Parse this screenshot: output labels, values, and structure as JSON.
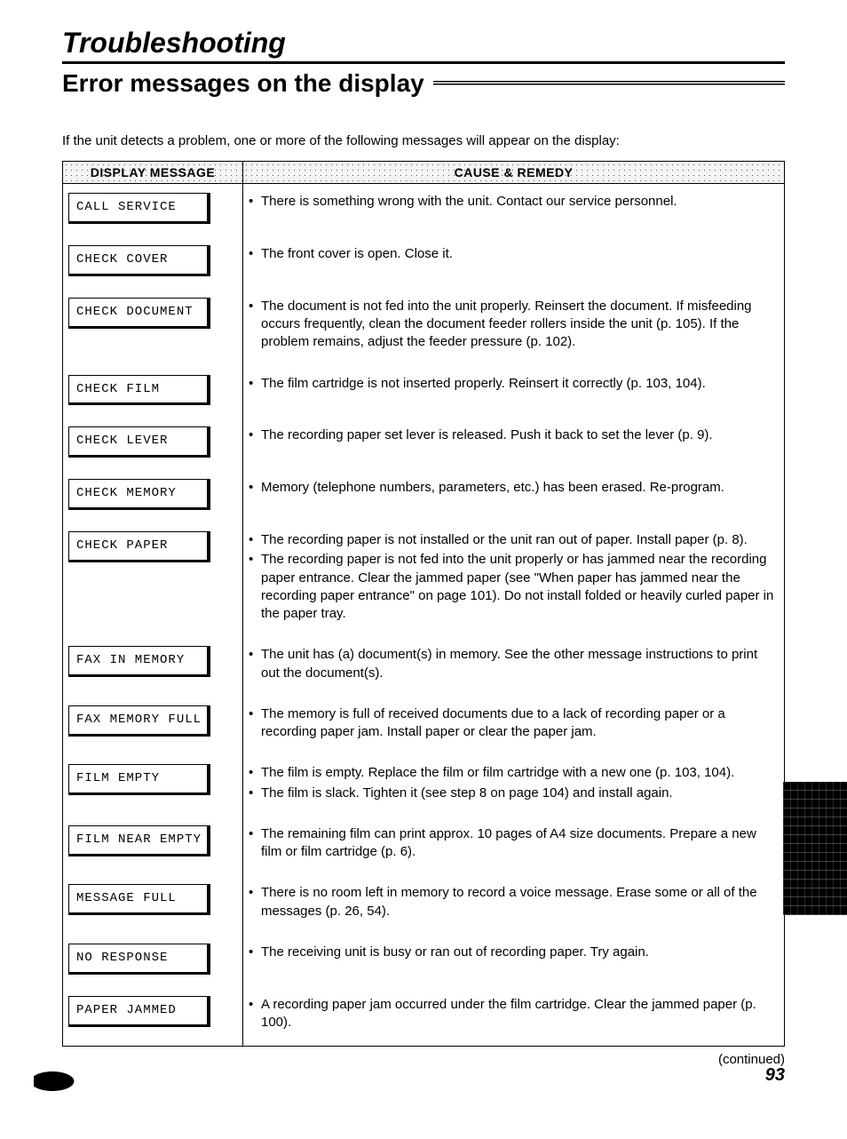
{
  "section_title": "Troubleshooting",
  "page_title": "Error messages on the display",
  "intro": "If the unit detects a problem, one or more of the following messages will appear on the display:",
  "columns": {
    "msg": "DISPLAY MESSAGE",
    "remedy": "CAUSE & REMEDY"
  },
  "rows": [
    {
      "msg": "CALL SERVICE",
      "remedy": [
        "There is something wrong with the unit. Contact our service personnel."
      ]
    },
    {
      "msg": "CHECK COVER",
      "remedy": [
        "The front cover is open. Close it."
      ]
    },
    {
      "msg": "CHECK DOCUMENT",
      "remedy": [
        "The document is not fed into the unit properly. Reinsert the document. If misfeeding occurs frequently, clean the document feeder rollers inside the unit (p. 105). If the problem remains, adjust the feeder pressure (p. 102)."
      ]
    },
    {
      "msg": "CHECK FILM",
      "remedy": [
        "The film cartridge is not inserted properly. Reinsert it correctly (p. 103, 104)."
      ]
    },
    {
      "msg": "CHECK LEVER",
      "remedy": [
        "The recording paper set lever is released. Push it back to set the lever (p. 9)."
      ]
    },
    {
      "msg": "CHECK MEMORY",
      "remedy": [
        "Memory (telephone numbers, parameters, etc.) has been erased. Re-program."
      ]
    },
    {
      "msg": "CHECK PAPER",
      "remedy": [
        "The recording paper is not installed or the unit ran out of paper. Install paper (p. 8).",
        "The recording paper is not fed into the unit properly or has jammed near the recording paper entrance. Clear the jammed paper (see \"When paper has jammed near the recording paper entrance\" on page 101). Do not install folded or heavily curled paper in the paper tray."
      ]
    },
    {
      "msg": "FAX IN MEMORY",
      "remedy": [
        "The unit has (a) document(s) in memory. See the other message instructions to print out the document(s)."
      ]
    },
    {
      "msg": "FAX MEMORY FULL",
      "remedy": [
        "The memory is full of received documents due to a lack of recording paper or a recording paper jam. Install paper or clear the paper jam."
      ]
    },
    {
      "msg": "FILM EMPTY",
      "remedy": [
        "The film is empty. Replace the film or film cartridge with a new one (p. 103, 104).",
        "The film is slack. Tighten it (see step 8 on page 104) and install again."
      ]
    },
    {
      "msg": "FILM NEAR EMPTY",
      "remedy": [
        "The remaining film can print approx. 10 pages of A4 size documents. Prepare a new film or film cartridge (p. 6)."
      ]
    },
    {
      "msg": "MESSAGE FULL",
      "remedy": [
        "There is no room left in memory to record a voice message. Erase some or all of the messages (p. 26, 54)."
      ]
    },
    {
      "msg": "NO RESPONSE",
      "remedy": [
        "The receiving unit is busy or ran out of recording paper. Try again."
      ]
    },
    {
      "msg": "PAPER JAMMED",
      "remedy": [
        "A recording paper jam occurred under the film cartridge. Clear the jammed paper (p. 100)."
      ]
    }
  ],
  "continued": "(continued)",
  "page_number": "93"
}
